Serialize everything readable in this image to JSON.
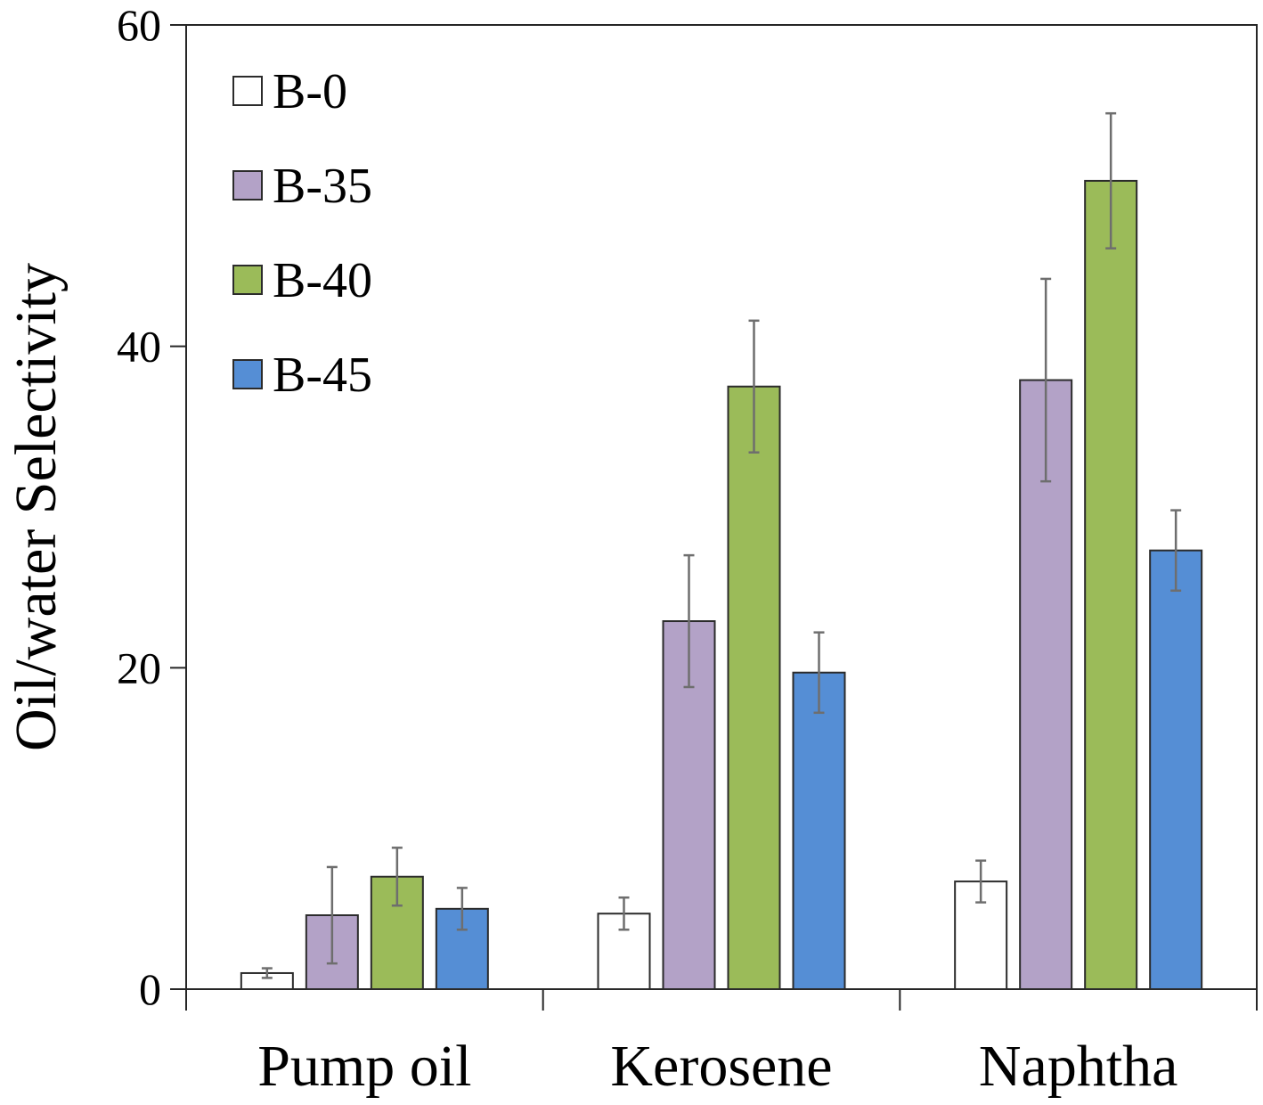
{
  "chart_data": {
    "type": "bar",
    "title": "",
    "xlabel": "",
    "ylabel": "Oil/water Selectivity",
    "ylim": [
      0,
      60
    ],
    "yticks": [
      0,
      20,
      40,
      60
    ],
    "categories": [
      "Pump oil",
      "Kerosene",
      "Naphtha"
    ],
    "legend_position": "top-left",
    "grid": false,
    "error_bars": true,
    "series": [
      {
        "name": "B-0",
        "color": "#ffffff",
        "values": [
          1.0,
          4.7,
          6.7
        ],
        "errors": [
          0.3,
          1.0,
          1.3
        ]
      },
      {
        "name": "B-35",
        "color": "#b3a2c7",
        "values": [
          4.6,
          22.9,
          37.9
        ],
        "errors": [
          3.0,
          4.1,
          6.3
        ]
      },
      {
        "name": "B-40",
        "color": "#9bbb59",
        "values": [
          7.0,
          37.5,
          50.3
        ],
        "errors": [
          1.8,
          4.1,
          4.2
        ]
      },
      {
        "name": "B-45",
        "color": "#558ed5",
        "values": [
          5.0,
          19.7,
          27.3
        ],
        "errors": [
          1.3,
          2.5,
          2.5
        ]
      }
    ]
  }
}
